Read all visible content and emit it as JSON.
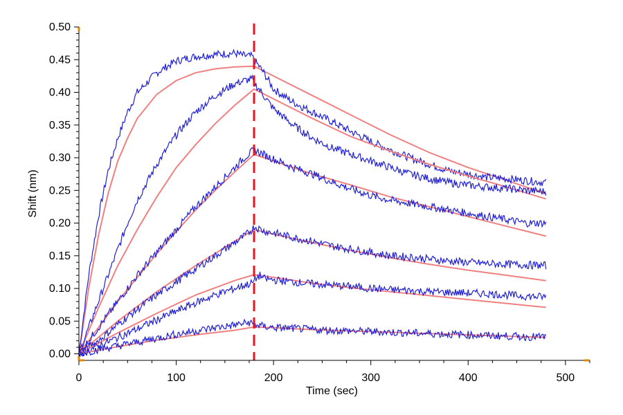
{
  "chart_data": {
    "type": "line",
    "title": "",
    "xlabel": "Time (sec)",
    "ylabel": "Shift (nm)",
    "xlim": [
      0,
      525
    ],
    "ylim": [
      -0.01,
      0.5
    ],
    "x_ticks": [
      0,
      100,
      200,
      300,
      400,
      500
    ],
    "x_tick_labels": [
      "0",
      "100",
      "200",
      "300",
      "400",
      "500"
    ],
    "y_ticks": [
      0.0,
      0.05,
      0.1,
      0.15,
      0.2,
      0.25,
      0.3,
      0.35,
      0.4,
      0.45,
      0.5
    ],
    "y_tick_labels": [
      "0.00",
      "0.05",
      "0.10",
      "0.15",
      "0.20",
      "0.25",
      "0.30",
      "0.35",
      "0.40",
      "0.45",
      "0.50"
    ],
    "grid": false,
    "legend": "none",
    "vertical_marker": {
      "x": 180,
      "style": "dashed",
      "color": "#e8141e"
    },
    "colors": {
      "measured": "#1f1fd6",
      "fit": "#f08080",
      "axis": "#000000",
      "axis_end_marker": "#e08a00"
    },
    "series": [
      {
        "measured": {
          "x": [
            0,
            5,
            10,
            20,
            30,
            40,
            50,
            60,
            80,
            100,
            120,
            140,
            160,
            170,
            178,
            180,
            190,
            200,
            220,
            240,
            260,
            280,
            300,
            320,
            340,
            360,
            380,
            400,
            420,
            440,
            460,
            480
          ],
          "y": [
            0.0,
            0.06,
            0.12,
            0.21,
            0.28,
            0.33,
            0.37,
            0.4,
            0.43,
            0.448,
            0.455,
            0.458,
            0.46,
            0.456,
            0.455,
            0.45,
            0.43,
            0.405,
            0.385,
            0.37,
            0.355,
            0.34,
            0.325,
            0.312,
            0.3,
            0.29,
            0.28,
            0.275,
            0.27,
            0.268,
            0.265,
            0.262
          ]
        },
        "fit": {
          "x": [
            0,
            5,
            10,
            20,
            30,
            40,
            50,
            60,
            80,
            100,
            120,
            140,
            160,
            180,
            200,
            240,
            280,
            320,
            360,
            400,
            440,
            480
          ],
          "y": [
            0.0,
            0.05,
            0.1,
            0.18,
            0.245,
            0.295,
            0.33,
            0.36,
            0.397,
            0.418,
            0.43,
            0.436,
            0.439,
            0.44,
            0.425,
            0.395,
            0.365,
            0.335,
            0.308,
            0.285,
            0.265,
            0.245
          ]
        }
      },
      {
        "measured": {
          "x": [
            0,
            10,
            20,
            30,
            40,
            50,
            60,
            80,
            100,
            120,
            140,
            160,
            170,
            178,
            180,
            190,
            200,
            220,
            240,
            260,
            280,
            300,
            320,
            340,
            360,
            380,
            400,
            420,
            440,
            460,
            480
          ],
          "y": [
            0.0,
            0.04,
            0.08,
            0.12,
            0.16,
            0.2,
            0.235,
            0.29,
            0.335,
            0.37,
            0.395,
            0.413,
            0.418,
            0.42,
            0.415,
            0.395,
            0.375,
            0.35,
            0.33,
            0.315,
            0.305,
            0.295,
            0.285,
            0.275,
            0.268,
            0.262,
            0.258,
            0.255,
            0.253,
            0.25,
            0.248
          ]
        },
        "fit": {
          "x": [
            0,
            20,
            40,
            60,
            80,
            100,
            120,
            140,
            160,
            180,
            200,
            240,
            280,
            320,
            360,
            400,
            440,
            480
          ],
          "y": [
            0.0,
            0.07,
            0.135,
            0.19,
            0.24,
            0.285,
            0.32,
            0.352,
            0.38,
            0.405,
            0.39,
            0.36,
            0.332,
            0.31,
            0.29,
            0.272,
            0.255,
            0.237
          ]
        }
      },
      {
        "measured": {
          "x": [
            0,
            10,
            20,
            40,
            60,
            80,
            100,
            120,
            140,
            160,
            170,
            180,
            200,
            220,
            240,
            260,
            280,
            300,
            320,
            340,
            360,
            380,
            400,
            420,
            440,
            460,
            480
          ],
          "y": [
            0.0,
            0.02,
            0.04,
            0.08,
            0.12,
            0.155,
            0.19,
            0.225,
            0.255,
            0.285,
            0.3,
            0.312,
            0.298,
            0.285,
            0.275,
            0.263,
            0.252,
            0.242,
            0.235,
            0.23,
            0.225,
            0.22,
            0.215,
            0.21,
            0.205,
            0.2,
            0.2
          ]
        },
        "fit": {
          "x": [
            0,
            20,
            40,
            60,
            80,
            100,
            120,
            140,
            160,
            180,
            200,
            240,
            280,
            320,
            360,
            400,
            440,
            480
          ],
          "y": [
            0.0,
            0.04,
            0.08,
            0.117,
            0.153,
            0.187,
            0.22,
            0.25,
            0.278,
            0.305,
            0.295,
            0.275,
            0.258,
            0.24,
            0.225,
            0.21,
            0.195,
            0.18
          ]
        }
      },
      {
        "measured": {
          "x": [
            0,
            10,
            20,
            40,
            60,
            80,
            100,
            120,
            140,
            160,
            170,
            178,
            180,
            190,
            200,
            220,
            240,
            260,
            280,
            300,
            320,
            340,
            360,
            380,
            400,
            420,
            440,
            460,
            480
          ],
          "y": [
            0.0,
            0.01,
            0.02,
            0.045,
            0.068,
            0.09,
            0.11,
            0.13,
            0.15,
            0.17,
            0.18,
            0.19,
            0.195,
            0.188,
            0.185,
            0.178,
            0.172,
            0.165,
            0.16,
            0.155,
            0.15,
            0.148,
            0.145,
            0.142,
            0.14,
            0.138,
            0.137,
            0.136,
            0.135
          ]
        },
        "fit": {
          "x": [
            0,
            40,
            80,
            120,
            160,
            180,
            200,
            240,
            280,
            320,
            360,
            400,
            440,
            480
          ],
          "y": [
            0.0,
            0.05,
            0.095,
            0.135,
            0.172,
            0.19,
            0.183,
            0.17,
            0.158,
            0.147,
            0.137,
            0.128,
            0.12,
            0.112
          ]
        }
      },
      {
        "measured": {
          "x": [
            0,
            10,
            20,
            40,
            60,
            80,
            100,
            120,
            140,
            160,
            170,
            178,
            182,
            186,
            190,
            200,
            220,
            240,
            260,
            280,
            300,
            320,
            340,
            360,
            380,
            400,
            420,
            440,
            460,
            480
          ],
          "y": [
            0.0,
            0.006,
            0.012,
            0.025,
            0.038,
            0.052,
            0.065,
            0.078,
            0.09,
            0.1,
            0.105,
            0.108,
            0.115,
            0.12,
            0.115,
            0.113,
            0.11,
            0.107,
            0.105,
            0.103,
            0.1,
            0.098,
            0.097,
            0.095,
            0.094,
            0.093,
            0.092,
            0.09,
            0.088,
            0.087
          ]
        },
        "fit": {
          "x": [
            0,
            40,
            80,
            120,
            160,
            180,
            200,
            240,
            280,
            320,
            360,
            400,
            440,
            480
          ],
          "y": [
            0.0,
            0.032,
            0.062,
            0.09,
            0.112,
            0.121,
            0.117,
            0.108,
            0.101,
            0.095,
            0.089,
            0.083,
            0.077,
            0.071
          ]
        }
      },
      {
        "measured": {
          "x": [
            0,
            10,
            20,
            40,
            60,
            80,
            100,
            120,
            140,
            160,
            175,
            180,
            190,
            200,
            220,
            240,
            260,
            280,
            300,
            320,
            340,
            360,
            380,
            400,
            420,
            440,
            460,
            480
          ],
          "y": [
            0.0,
            0.003,
            0.007,
            0.012,
            0.018,
            0.024,
            0.03,
            0.035,
            0.04,
            0.044,
            0.048,
            0.045,
            0.042,
            0.04,
            0.039,
            0.037,
            0.036,
            0.035,
            0.034,
            0.033,
            0.032,
            0.031,
            0.03,
            0.029,
            0.028,
            0.027,
            0.026,
            0.026
          ]
        },
        "fit": {
          "x": [
            0,
            40,
            80,
            120,
            160,
            180,
            200,
            240,
            280,
            320,
            360,
            400,
            440,
            480
          ],
          "y": [
            0.0,
            0.011,
            0.021,
            0.029,
            0.036,
            0.041,
            0.04,
            0.037,
            0.035,
            0.033,
            0.031,
            0.029,
            0.027,
            0.025
          ]
        }
      }
    ]
  }
}
